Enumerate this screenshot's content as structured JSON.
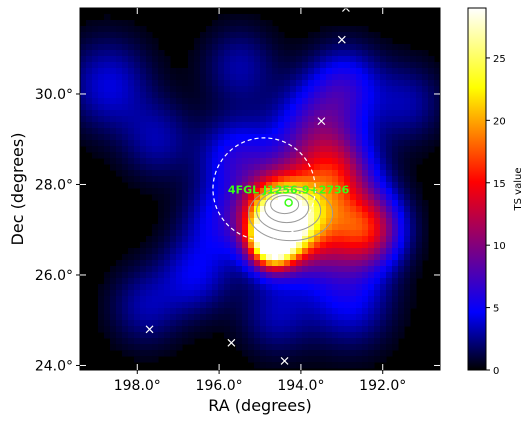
{
  "chart_data": {
    "type": "heatmap",
    "title": "",
    "xlabel": "RA (degrees)",
    "ylabel": "Dec (degrees)",
    "x_ticks": [
      "198.0°",
      "196.0°",
      "194.0°",
      "192.0°"
    ],
    "y_ticks": [
      "24.0°",
      "26.0°",
      "28.0°",
      "30.0°"
    ],
    "colorbar": {
      "label": "TS value",
      "range": [
        0,
        29
      ],
      "ticks": [
        "0",
        "5",
        "10",
        "15",
        "20",
        "25"
      ],
      "colors": [
        "#000000",
        "#0000ff",
        "#ff0000",
        "#ffff00",
        "#ffffff"
      ]
    },
    "source": {
      "name": "4FGL J1256.9+2736",
      "ra": 194.3,
      "dec": 27.6,
      "color": "#39ff14"
    },
    "region_circle": {
      "ra": 194.9,
      "dec": 27.9,
      "radius_deg": 1.25,
      "style": "dashed-white"
    },
    "other_sources": [
      {
        "ra": 192.9,
        "dec": 31.9
      },
      {
        "ra": 193.0,
        "dec": 31.2
      },
      {
        "ra": 193.5,
        "dec": 29.4
      },
      {
        "ra": 197.7,
        "dec": 24.8
      },
      {
        "ra": 195.7,
        "dec": 24.5
      },
      {
        "ra": 194.4,
        "dec": 24.1
      }
    ],
    "ts_map_peaks": [
      {
        "ra": 194.5,
        "dec": 27.2,
        "ts": 29,
        "sigma_deg": 0.55
      },
      {
        "ra": 194.7,
        "dec": 26.7,
        "ts": 22,
        "sigma_deg": 0.35
      },
      {
        "ra": 194.0,
        "dec": 27.6,
        "ts": 9,
        "sigma_deg": 0.9
      },
      {
        "ra": 193.2,
        "dec": 27.1,
        "ts": 8,
        "sigma_deg": 0.8
      },
      {
        "ra": 192.3,
        "dec": 27.0,
        "ts": 10,
        "sigma_deg": 0.55
      },
      {
        "ra": 193.1,
        "dec": 28.3,
        "ts": 7,
        "sigma_deg": 0.6
      },
      {
        "ra": 193.6,
        "dec": 29.3,
        "ts": 6,
        "sigma_deg": 0.7
      },
      {
        "ra": 192.9,
        "dec": 30.2,
        "ts": 5,
        "sigma_deg": 0.6
      },
      {
        "ra": 195.6,
        "dec": 28.6,
        "ts": 5,
        "sigma_deg": 0.6
      },
      {
        "ra": 196.0,
        "dec": 27.2,
        "ts": 4,
        "sigma_deg": 0.6
      },
      {
        "ra": 198.7,
        "dec": 30.2,
        "ts": 4,
        "sigma_deg": 0.7
      },
      {
        "ra": 197.5,
        "dec": 29.0,
        "ts": 3,
        "sigma_deg": 0.6
      },
      {
        "ra": 196.6,
        "dec": 26.0,
        "ts": 4,
        "sigma_deg": 0.6
      },
      {
        "ra": 192.8,
        "dec": 25.4,
        "ts": 4,
        "sigma_deg": 0.7
      },
      {
        "ra": 194.6,
        "dec": 25.1,
        "ts": 3,
        "sigma_deg": 0.6
      },
      {
        "ra": 197.8,
        "dec": 25.3,
        "ts": 3,
        "sigma_deg": 0.6
      },
      {
        "ra": 195.5,
        "dec": 30.6,
        "ts": 3,
        "sigma_deg": 0.6
      },
      {
        "ra": 191.4,
        "dec": 29.8,
        "ts": 3,
        "sigma_deg": 0.6
      }
    ],
    "xlim": [
      199.4,
      190.6
    ],
    "ylim": [
      23.9,
      31.9
    ]
  }
}
